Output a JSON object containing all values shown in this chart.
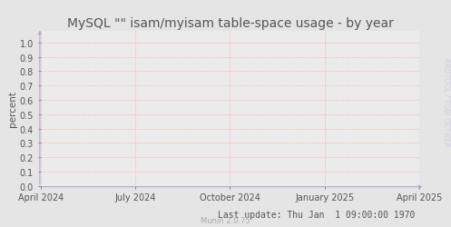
{
  "title": "MySQL \"\" isam/myisam table-space usage - by year",
  "ylabel": "percent",
  "bg_color": "#e5e5e5",
  "plot_bg_color": "#ebebeb",
  "grid_color": "#ffaaaa",
  "axis_color": "#aaaacc",
  "text_color": "#555555",
  "yticks": [
    0.0,
    0.1,
    0.2,
    0.3,
    0.4,
    0.5,
    0.6,
    0.7,
    0.8,
    0.9,
    1.0
  ],
  "ylim": [
    0.0,
    1.08
  ],
  "xtick_labels": [
    "April 2024",
    "July 2024",
    "October 2024",
    "January 2025",
    "April 2025"
  ],
  "xtick_positions": [
    0.0,
    0.25,
    0.5,
    0.75,
    1.0
  ],
  "footer_text": "Last update: Thu Jan  1 09:00:00 1970",
  "munin_text": "Munin 2.0.75",
  "watermark": "RRDTOOL / TOBI OETIKER",
  "title_fontsize": 10,
  "label_fontsize": 7.5,
  "tick_fontsize": 7,
  "footer_fontsize": 7,
  "munin_fontsize": 6,
  "watermark_fontsize": 5.5
}
